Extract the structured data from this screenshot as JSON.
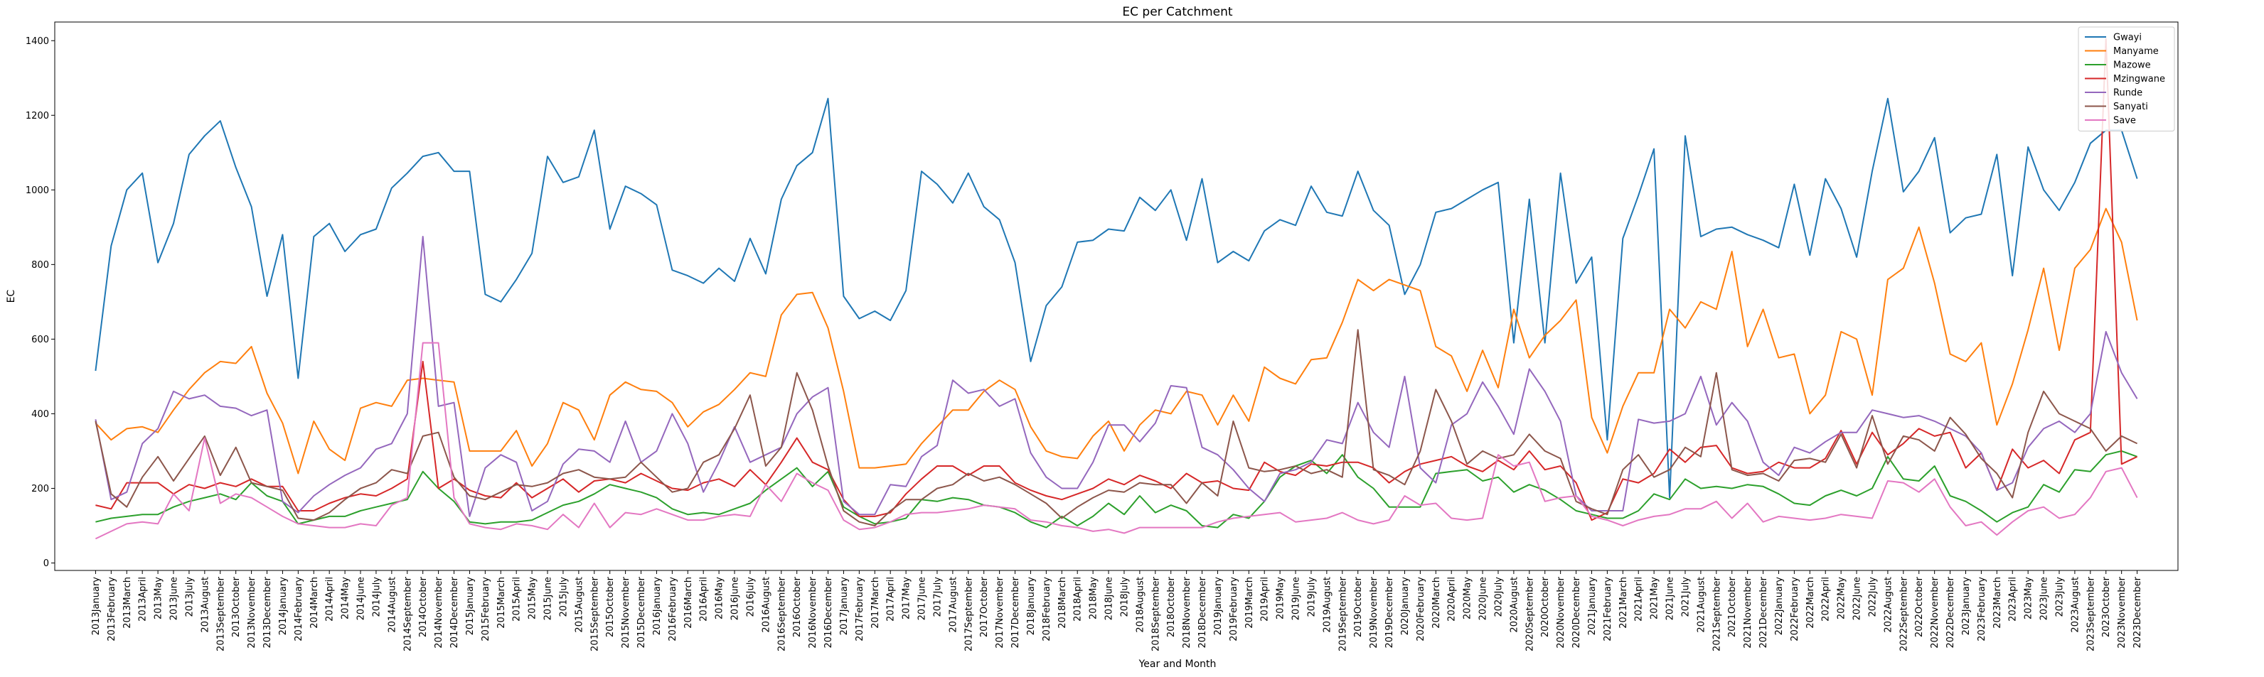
{
  "chart_data": {
    "type": "line",
    "title": "EC per Catchment",
    "xlabel": "Year and Month",
    "ylabel": "EC",
    "ylim": [
      -20,
      1450
    ],
    "yticks": [
      0,
      200,
      400,
      600,
      800,
      1000,
      1200,
      1400
    ],
    "grid": false,
    "legend_position": "top-right",
    "x": [
      "2013January",
      "2013February",
      "2013March",
      "2013April",
      "2013May",
      "2013June",
      "2013July",
      "2013August",
      "2013September",
      "2013October",
      "2013November",
      "2013December",
      "2014January",
      "2014February",
      "2014March",
      "2014April",
      "2014May",
      "2014June",
      "2014July",
      "2014August",
      "2014September",
      "2014October",
      "2014November",
      "2014December",
      "2015January",
      "2015February",
      "2015March",
      "2015April",
      "2015May",
      "2015June",
      "2015July",
      "2015August",
      "2015September",
      "2015October",
      "2015November",
      "2015December",
      "2016January",
      "2016February",
      "2016March",
      "2016April",
      "2016May",
      "2016June",
      "2016July",
      "2016August",
      "2016September",
      "2016October",
      "2016November",
      "2016December",
      "2017January",
      "2017February",
      "2017March",
      "2017April",
      "2017May",
      "2017June",
      "2017July",
      "2017August",
      "2017September",
      "2017October",
      "2017November",
      "2017December",
      "2018January",
      "2018February",
      "2018March",
      "2018April",
      "2018May",
      "2018June",
      "2018July",
      "2018August",
      "2018September",
      "2018October",
      "2018November",
      "2018December",
      "2019January",
      "2019February",
      "2019March",
      "2019April",
      "2019May",
      "2019June",
      "2019July",
      "2019August",
      "2019September",
      "2019October",
      "2019November",
      "2019December",
      "2020January",
      "2020February",
      "2020March",
      "2020April",
      "2020May",
      "2020June",
      "2020July",
      "2020August",
      "2020September",
      "2020October",
      "2020November",
      "2020December",
      "2021January",
      "2021February",
      "2021March",
      "2021April",
      "2021May",
      "2021June",
      "2021July",
      "2021August",
      "2021September",
      "2021October",
      "2021November",
      "2021December",
      "2022January",
      "2022February",
      "2022March",
      "2022April",
      "2022May",
      "2022June",
      "2022July",
      "2022August",
      "2022September",
      "2022October",
      "2022November",
      "2022December",
      "2023January",
      "2023February",
      "2023March",
      "2023April",
      "2023May",
      "2023June",
      "2023July",
      "2023August",
      "2023September",
      "2023October",
      "2023November",
      "2023December"
    ],
    "series": [
      {
        "name": "Gwayi",
        "color": "#1f77b4",
        "values": [
          515,
          850,
          1000,
          1045,
          805,
          910,
          1095,
          1145,
          1185,
          1060,
          955,
          715,
          880,
          495,
          875,
          910,
          835,
          880,
          895,
          1005,
          1045,
          1090,
          1100,
          1050,
          1050,
          720,
          700,
          760,
          830,
          1090,
          1020,
          1035,
          1160,
          895,
          1010,
          990,
          960,
          785,
          770,
          750,
          790,
          755,
          870,
          775,
          975,
          1065,
          1100,
          1245,
          715,
          655,
          675,
          650,
          730,
          1050,
          1015,
          965,
          1045,
          955,
          920,
          805,
          540,
          690,
          740,
          860,
          865,
          895,
          890,
          980,
          945,
          1000,
          865,
          1030,
          805,
          835,
          810,
          890,
          920,
          905,
          1010,
          940,
          930,
          1050,
          945,
          905,
          720,
          800,
          940,
          950,
          975,
          1000,
          1020,
          590,
          975,
          590,
          1045,
          750,
          820,
          330,
          870,
          985,
          1110,
          175,
          1145,
          875,
          895,
          900,
          880,
          865,
          845,
          1015,
          825,
          1030,
          950,
          820,
          1050,
          1245,
          995,
          1050,
          1140,
          885,
          925,
          935,
          1095,
          770,
          1115,
          1000,
          945,
          1020,
          1125,
          1160,
          1160,
          1030
        ]
      },
      {
        "name": "Manyame",
        "color": "#ff7f0e",
        "values": [
          375,
          330,
          360,
          365,
          350,
          410,
          465,
          510,
          540,
          535,
          580,
          455,
          375,
          240,
          380,
          305,
          275,
          415,
          430,
          420,
          490,
          495,
          490,
          485,
          300,
          300,
          300,
          355,
          260,
          320,
          430,
          410,
          330,
          450,
          485,
          465,
          460,
          430,
          365,
          405,
          425,
          465,
          510,
          500,
          665,
          720,
          725,
          630,
          460,
          255,
          255,
          260,
          265,
          320,
          365,
          410,
          410,
          460,
          490,
          465,
          365,
          300,
          285,
          280,
          340,
          380,
          300,
          370,
          410,
          400,
          460,
          450,
          370,
          450,
          380,
          525,
          495,
          480,
          545,
          550,
          645,
          760,
          730,
          760,
          745,
          730,
          580,
          555,
          460,
          570,
          470,
          680,
          550,
          610,
          650,
          705,
          390,
          295,
          420,
          510,
          510,
          680,
          630,
          700,
          680,
          835,
          580,
          680,
          550,
          560,
          400,
          450,
          620,
          600,
          450,
          760,
          790,
          900,
          750,
          560,
          540,
          590,
          370,
          480,
          625,
          790,
          570,
          790,
          840,
          950,
          860,
          650
        ]
      },
      {
        "name": "Mazowe",
        "color": "#2ca02c",
        "values": [
          110,
          120,
          125,
          130,
          130,
          150,
          165,
          175,
          185,
          170,
          215,
          180,
          165,
          105,
          115,
          125,
          125,
          140,
          150,
          160,
          170,
          245,
          200,
          165,
          110,
          105,
          110,
          110,
          115,
          135,
          155,
          165,
          185,
          210,
          200,
          190,
          175,
          145,
          130,
          135,
          130,
          145,
          160,
          195,
          225,
          255,
          205,
          245,
          150,
          125,
          105,
          110,
          120,
          170,
          165,
          175,
          170,
          155,
          150,
          135,
          110,
          95,
          125,
          100,
          125,
          160,
          130,
          180,
          135,
          155,
          140,
          100,
          95,
          130,
          120,
          165,
          230,
          260,
          275,
          240,
          290,
          230,
          200,
          150,
          150,
          150,
          240,
          245,
          250,
          220,
          230,
          190,
          210,
          195,
          170,
          140,
          130,
          120,
          120,
          140,
          185,
          170,
          225,
          200,
          205,
          200,
          210,
          205,
          185,
          160,
          155,
          180,
          195,
          180,
          200,
          285,
          225,
          220,
          260,
          180,
          165,
          140,
          110,
          135,
          150,
          210,
          190,
          250,
          245,
          290,
          300,
          285
        ]
      },
      {
        "name": "Mzingwane",
        "color": "#d62728",
        "values": [
          155,
          145,
          215,
          215,
          215,
          185,
          210,
          200,
          215,
          205,
          225,
          205,
          205,
          140,
          140,
          160,
          175,
          185,
          180,
          200,
          225,
          540,
          200,
          225,
          195,
          180,
          175,
          215,
          175,
          200,
          225,
          190,
          220,
          225,
          215,
          240,
          220,
          200,
          195,
          215,
          225,
          205,
          250,
          210,
          270,
          335,
          270,
          250,
          170,
          125,
          125,
          135,
          185,
          225,
          260,
          260,
          235,
          260,
          260,
          215,
          195,
          180,
          170,
          185,
          200,
          225,
          210,
          235,
          220,
          200,
          240,
          215,
          220,
          200,
          195,
          270,
          245,
          235,
          265,
          260,
          270,
          270,
          255,
          215,
          245,
          265,
          275,
          285,
          260,
          245,
          275,
          250,
          300,
          250,
          260,
          215,
          115,
          135,
          225,
          215,
          240,
          305,
          270,
          310,
          315,
          255,
          240,
          245,
          270,
          255,
          255,
          280,
          355,
          265,
          350,
          290,
          320,
          360,
          340,
          350,
          255,
          295,
          195,
          305,
          255,
          275,
          240,
          330,
          350,
          1405,
          265,
          285
        ]
      },
      {
        "name": "Runde",
        "color": "#9467bd",
        "values": [
          385,
          170,
          190,
          320,
          360,
          460,
          440,
          450,
          420,
          415,
          395,
          410,
          165,
          135,
          180,
          210,
          235,
          255,
          305,
          320,
          400,
          875,
          420,
          430,
          125,
          255,
          290,
          270,
          140,
          165,
          265,
          305,
          300,
          270,
          380,
          270,
          300,
          400,
          320,
          190,
          270,
          365,
          270,
          290,
          310,
          400,
          445,
          470,
          165,
          130,
          130,
          210,
          205,
          285,
          315,
          490,
          455,
          465,
          420,
          440,
          295,
          230,
          200,
          200,
          270,
          370,
          370,
          325,
          375,
          475,
          470,
          310,
          290,
          250,
          200,
          165,
          240,
          250,
          270,
          330,
          320,
          430,
          350,
          310,
          500,
          255,
          215,
          370,
          400,
          485,
          420,
          345,
          520,
          460,
          380,
          180,
          140,
          140,
          140,
          385,
          375,
          380,
          400,
          500,
          370,
          430,
          380,
          270,
          235,
          310,
          295,
          325,
          350,
          350,
          410,
          400,
          390,
          395,
          380,
          360,
          340,
          295,
          195,
          215,
          310,
          360,
          380,
          350,
          400,
          620,
          510,
          440
        ]
      },
      {
        "name": "Sanyati",
        "color": "#8c564b",
        "values": [
          380,
          185,
          150,
          230,
          285,
          220,
          280,
          340,
          235,
          310,
          215,
          205,
          195,
          120,
          115,
          135,
          170,
          200,
          215,
          250,
          240,
          340,
          350,
          230,
          180,
          170,
          190,
          210,
          205,
          215,
          240,
          250,
          230,
          225,
          230,
          270,
          230,
          190,
          200,
          270,
          290,
          360,
          450,
          260,
          310,
          510,
          410,
          260,
          140,
          110,
          100,
          140,
          170,
          170,
          200,
          210,
          240,
          220,
          230,
          210,
          185,
          160,
          120,
          150,
          175,
          195,
          190,
          215,
          210,
          210,
          160,
          215,
          180,
          380,
          255,
          245,
          250,
          260,
          240,
          250,
          230,
          625,
          250,
          235,
          210,
          300,
          465,
          380,
          265,
          300,
          280,
          290,
          345,
          300,
          280,
          165,
          145,
          130,
          250,
          290,
          230,
          250,
          310,
          285,
          510,
          250,
          235,
          240,
          220,
          275,
          280,
          270,
          345,
          255,
          395,
          265,
          340,
          330,
          300,
          390,
          345,
          280,
          240,
          175,
          350,
          460,
          400,
          380,
          360,
          300,
          340,
          320
        ]
      },
      {
        "name": "Save",
        "color": "#e377c2",
        "values": [
          65,
          85,
          105,
          110,
          105,
          185,
          140,
          335,
          160,
          185,
          175,
          150,
          125,
          105,
          100,
          95,
          95,
          105,
          100,
          155,
          175,
          590,
          590,
          175,
          105,
          95,
          90,
          105,
          100,
          90,
          130,
          95,
          160,
          95,
          135,
          130,
          145,
          130,
          115,
          115,
          125,
          130,
          125,
          210,
          165,
          240,
          215,
          195,
          115,
          90,
          95,
          110,
          130,
          135,
          135,
          140,
          145,
          155,
          150,
          145,
          115,
          110,
          100,
          95,
          85,
          90,
          80,
          95,
          95,
          95,
          95,
          95,
          110,
          120,
          125,
          130,
          135,
          110,
          115,
          120,
          135,
          115,
          105,
          115,
          180,
          155,
          160,
          120,
          115,
          120,
          290,
          260,
          270,
          165,
          175,
          180,
          125,
          115,
          100,
          115,
          125,
          130,
          145,
          145,
          165,
          120,
          160,
          110,
          125,
          120,
          115,
          120,
          130,
          125,
          120,
          220,
          215,
          190,
          225,
          150,
          100,
          110,
          75,
          110,
          140,
          150,
          120,
          130,
          175,
          245,
          255,
          175
        ]
      }
    ]
  }
}
